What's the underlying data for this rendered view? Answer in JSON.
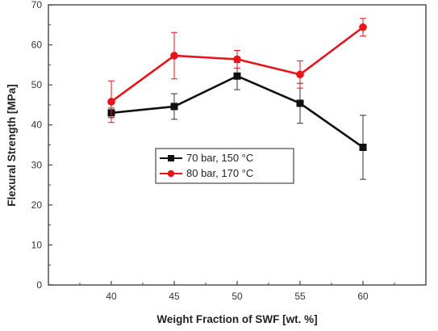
{
  "chart_data": {
    "type": "line",
    "xlabel": "Weight Fraction of SWF [wt. %]",
    "ylabel": "Flexural Strength [MPa]",
    "x": [
      40,
      45,
      50,
      55,
      60
    ],
    "xlim": [
      35,
      65
    ],
    "ylim": [
      0,
      70
    ],
    "xticks": [
      "40",
      "45",
      "50",
      "55",
      "60"
    ],
    "yticks": [
      "0",
      "10",
      "20",
      "30",
      "40",
      "50",
      "60",
      "70"
    ],
    "grid": false,
    "legend_position": "center-right",
    "series": [
      {
        "name": "70 bar, 150 °C",
        "color": "#111111",
        "marker": "square",
        "values": [
          43.0,
          44.6,
          52.2,
          45.4,
          34.4
        ],
        "error": [
          1.2,
          3.2,
          3.4,
          5.0,
          8.0
        ]
      },
      {
        "name": "80 bar, 170 °C",
        "color": "#e8141c",
        "marker": "circle",
        "values": [
          45.8,
          57.3,
          56.4,
          52.6,
          64.4
        ],
        "error": [
          5.2,
          5.8,
          2.2,
          3.4,
          2.2
        ]
      }
    ]
  }
}
